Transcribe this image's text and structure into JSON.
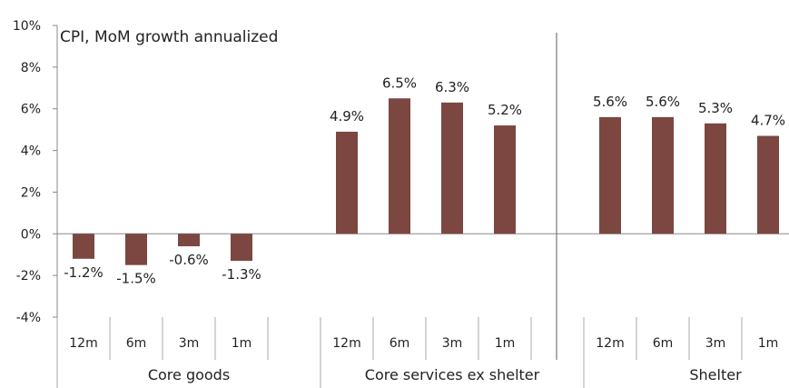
{
  "chart_data": {
    "type": "bar",
    "title": "CPI, MoM growth annualized",
    "ylim": [
      -4,
      10
    ],
    "yticks": [
      -4,
      -2,
      0,
      2,
      4,
      6,
      8,
      10
    ],
    "ytick_labels": [
      "-4%",
      "-2%",
      "0%",
      "2%",
      "4%",
      "6%",
      "8%",
      "10%"
    ],
    "color": "#7b4740",
    "groups": [
      {
        "name": "Core goods",
        "categories": [
          "12m",
          "6m",
          "3m",
          "1m"
        ],
        "values": [
          -1.2,
          -1.5,
          -0.6,
          -1.3
        ],
        "labels": [
          "-1.2%",
          "-1.5%",
          "-0.6%",
          "-1.3%"
        ]
      },
      {
        "name": "Core services ex shelter",
        "categories": [
          "12m",
          "6m",
          "3m",
          "1m"
        ],
        "values": [
          4.9,
          6.5,
          6.3,
          5.2
        ],
        "labels": [
          "4.9%",
          "6.5%",
          "6.3%",
          "5.2%"
        ]
      },
      {
        "name": "Shelter",
        "categories": [
          "12m",
          "6m",
          "3m",
          "1m"
        ],
        "values": [
          5.6,
          5.6,
          5.3,
          4.7
        ],
        "labels": [
          "5.6%",
          "5.6%",
          "5.3%",
          "4.7%"
        ]
      }
    ]
  }
}
